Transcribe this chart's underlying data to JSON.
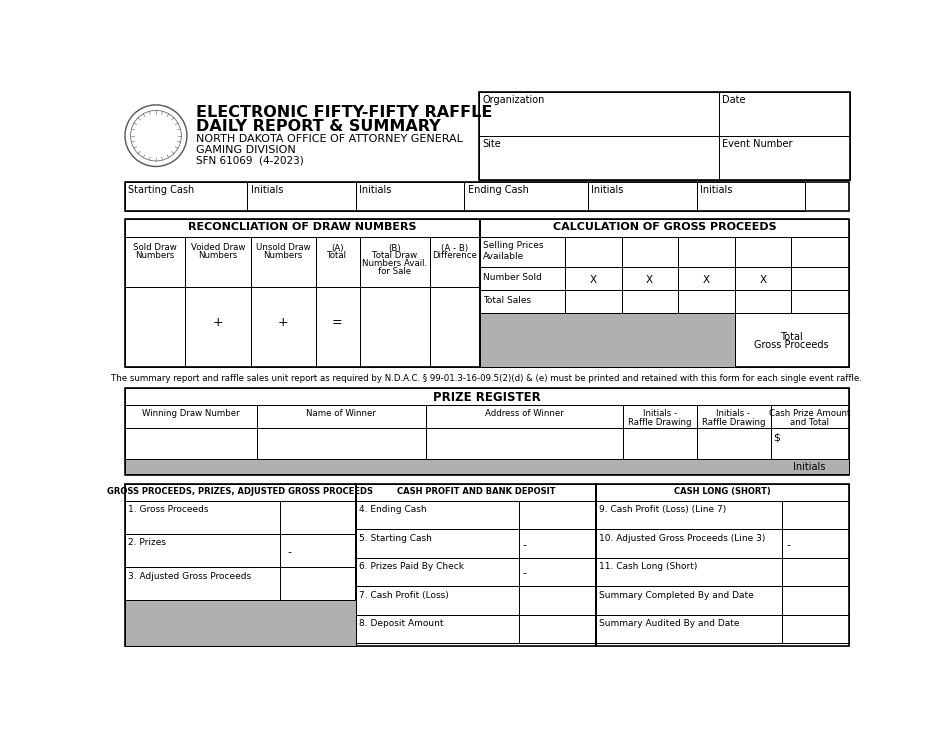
{
  "title_line1": "ELECTRONIC FIFTY-FIFTY RAFFLE",
  "title_line2": "DAILY REPORT & SUMMARY",
  "subtitle_line1": "NORTH DAKOTA OFFICE OF ATTORNEY GENERAL",
  "subtitle_line2": "GAMING DIVISION",
  "form_number": "SFN 61069  (4-2023)",
  "note_text": "The summary report and raffle sales unit report as required by N.D.A.C. § 99-01.3-16-09.5(2)(d) & (e) must be printed and retained with this form for each single event raffle.",
  "bg_color": "#ffffff",
  "gray_fill": "#b0b0b0",
  "lw_outer": 1.2,
  "lw_inner": 0.7
}
